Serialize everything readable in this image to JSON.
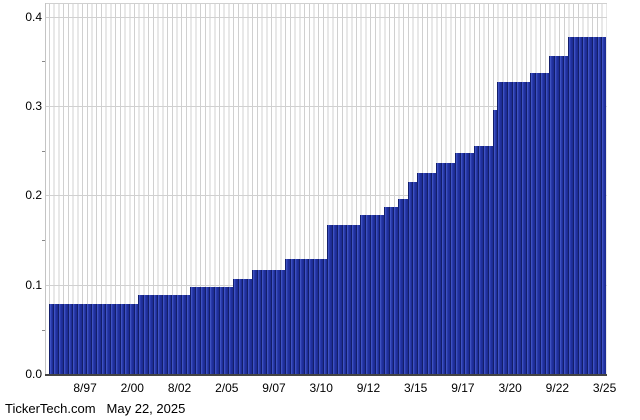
{
  "footer": {
    "brand": "TickerTech.com",
    "date": "May 22, 2025"
  },
  "colors": {
    "bar_fill": "#2334a6",
    "bar_edge": "#131e6a",
    "bar_highlight": "#3e52c2",
    "gridline": "#d0d0d0",
    "frame": "#c4c4c4",
    "axis": "#444444",
    "minor_tick": "#888888",
    "text": "#000000",
    "background": "#ffffff"
  },
  "chart_data": {
    "type": "bar",
    "title": "",
    "xlabel": "",
    "ylabel": "",
    "grid": true,
    "legend": false,
    "ylim": [
      0,
      0.415
    ],
    "y_tick_values": [
      0,
      0.1,
      0.2,
      0.3,
      0.4
    ],
    "y_tick_labels": [
      "0.0",
      "0.1",
      "0.2",
      "0.3",
      "0.4"
    ],
    "y_minor_tick_values": [
      0.05,
      0.15,
      0.25,
      0.35
    ],
    "x_tick_labels": [
      "8/97",
      "2/00",
      "8/02",
      "2/05",
      "9/07",
      "3/10",
      "9/12",
      "3/15",
      "9/17",
      "3/20",
      "9/22",
      "3/25"
    ],
    "n_bars": 118,
    "bar_period": "quarterly",
    "steps": [
      {
        "from_bar": 0,
        "value": 0.0785
      },
      {
        "from_bar": 19,
        "value": 0.0885
      },
      {
        "from_bar": 30,
        "value": 0.098
      },
      {
        "from_bar": 39,
        "value": 0.107
      },
      {
        "from_bar": 43,
        "value": 0.117
      },
      {
        "from_bar": 50,
        "value": 0.129
      },
      {
        "from_bar": 59,
        "value": 0.167
      },
      {
        "from_bar": 66,
        "value": 0.1785
      },
      {
        "from_bar": 71,
        "value": 0.187
      },
      {
        "from_bar": 74,
        "value": 0.1955
      },
      {
        "from_bar": 76,
        "value": 0.2155
      },
      {
        "from_bar": 78,
        "value": 0.2255
      },
      {
        "from_bar": 82,
        "value": 0.236
      },
      {
        "from_bar": 86,
        "value": 0.247
      },
      {
        "from_bar": 90,
        "value": 0.2555
      },
      {
        "from_bar": 94,
        "value": 0.296
      },
      {
        "from_bar": 95,
        "value": 0.3265
      },
      {
        "from_bar": 102,
        "value": 0.3365
      },
      {
        "from_bar": 106,
        "value": 0.356
      },
      {
        "from_bar": 110,
        "value": 0.377
      }
    ]
  }
}
